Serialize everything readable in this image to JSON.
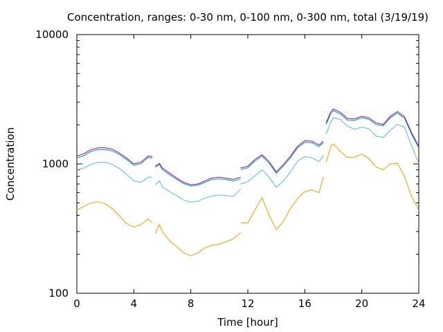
{
  "chart_data": {
    "type": "line",
    "title": "Concentration, ranges: 0-30 nm, 0-100 nm, 0-300 nm, total (3/19/19)",
    "xlabel": "Time [hour]",
    "ylabel": "Concentration",
    "xlim": [
      0,
      24
    ],
    "ylim": [
      100,
      10000
    ],
    "yscale": "log",
    "x_ticks": [
      0,
      4,
      8,
      12,
      16,
      20,
      24
    ],
    "x_tick_labels": [
      "0",
      "4",
      "8",
      "12",
      "16",
      "20",
      "24"
    ],
    "y_ticks": [
      100,
      1000,
      10000
    ],
    "y_tick_labels": [
      "100",
      "1000",
      "10000"
    ],
    "grid": false,
    "legend": "none",
    "series": [
      {
        "key": "total",
        "color": "#9400d3",
        "segments": [
          {
            "x": [
              0,
              0.5,
              1,
              1.5,
              2,
              2.5,
              3,
              3.5,
              4,
              4.5,
              5,
              5.3
            ],
            "y": [
              1150,
              1200,
              1290,
              1330,
              1330,
              1300,
              1210,
              1110,
              1000,
              1030,
              1150,
              1140
            ]
          },
          {
            "x": [
              5.5,
              5.8,
              6,
              6.5,
              7,
              7.5,
              8,
              8.5,
              9,
              9.5,
              10,
              10.5,
              11,
              11.5
            ],
            "y": [
              960,
              1010,
              930,
              850,
              780,
              720,
              690,
              700,
              740,
              780,
              790,
              775,
              760,
              790
            ]
          },
          {
            "x": [
              11.5,
              12,
              12.5,
              13,
              13.5,
              14,
              14.5,
              15,
              15.5,
              16,
              16.5,
              17,
              17.3
            ],
            "y": [
              930,
              960,
              1080,
              1180,
              1040,
              870,
              990,
              1150,
              1370,
              1510,
              1500,
              1400,
              1500
            ]
          },
          {
            "x": [
              17.5,
              17.8,
              18,
              18.5,
              19,
              19.5,
              20,
              20.5,
              21,
              21.5,
              22,
              22.5,
              23,
              23.5,
              24
            ],
            "y": [
              2080,
              2500,
              2660,
              2500,
              2240,
              2230,
              2340,
              2270,
              2080,
              2020,
              2330,
              2540,
              2320,
              1740,
              1370
            ]
          }
        ]
      },
      {
        "key": "0-300 nm",
        "color": "#009e73",
        "segments": [
          {
            "x": [
              0,
              0.5,
              1,
              1.5,
              2,
              2.5,
              3,
              3.5,
              4,
              4.5,
              5,
              5.3
            ],
            "y": [
              1110,
              1160,
              1250,
              1290,
              1290,
              1260,
              1180,
              1080,
              975,
              1005,
              1120,
              1115
            ]
          },
          {
            "x": [
              5.5,
              5.8,
              6,
              6.5,
              7,
              7.5,
              8,
              8.5,
              9,
              9.5,
              10,
              10.5,
              11,
              11.5
            ],
            "y": [
              940,
              990,
              905,
              825,
              760,
              705,
              675,
              685,
              720,
              760,
              765,
              755,
              740,
              765
            ]
          },
          {
            "x": [
              11.5,
              12,
              12.5,
              13,
              13.5,
              14,
              14.5,
              15,
              15.5,
              16,
              16.5,
              17,
              17.3
            ],
            "y": [
              905,
              935,
              1050,
              1150,
              1010,
              845,
              965,
              1120,
              1330,
              1470,
              1460,
              1360,
              1460
            ]
          },
          {
            "x": [
              17.5,
              17.8,
              18,
              18.5,
              19,
              19.5,
              20,
              20.5,
              21,
              21.5,
              22,
              22.5,
              23,
              23.5,
              24
            ],
            "y": [
              2020,
              2420,
              2580,
              2430,
              2180,
              2170,
              2280,
              2210,
              2020,
              1970,
              2270,
              2470,
              2260,
              1690,
              1330
            ]
          }
        ]
      },
      {
        "key": "0-100 nm",
        "color": "#56b4e9",
        "segments": [
          {
            "x": [
              0,
              0.5,
              1,
              1.5,
              2,
              2.5,
              3,
              3.5,
              4,
              4.5,
              5,
              5.3
            ],
            "y": [
              900,
              930,
              990,
              1030,
              1030,
              990,
              920,
              830,
              740,
              720,
              790,
              790
            ]
          },
          {
            "x": [
              5.5,
              5.8,
              6,
              6.5,
              7,
              7.5,
              8,
              8.5,
              9,
              9.5,
              10,
              10.5,
              11,
              11.5
            ],
            "y": [
              690,
              740,
              665,
              610,
              570,
              525,
              505,
              515,
              545,
              565,
              575,
              570,
              560,
              640
            ]
          },
          {
            "x": [
              11.5,
              12,
              12.5,
              13,
              13.5,
              14,
              14.5,
              15,
              15.5,
              16,
              16.5,
              17,
              17.3
            ],
            "y": [
              700,
              730,
              810,
              900,
              790,
              660,
              740,
              870,
              1050,
              1140,
              1120,
              1040,
              1160
            ]
          },
          {
            "x": [
              17.5,
              17.8,
              18,
              18.5,
              19,
              19.5,
              20,
              20.5,
              21,
              21.5,
              22,
              22.5,
              23,
              23.5,
              24
            ],
            "y": [
              1700,
              2080,
              2280,
              2200,
              1950,
              1850,
              1930,
              1870,
              1640,
              1600,
              1820,
              2020,
              1920,
              1380,
              1010
            ]
          }
        ]
      },
      {
        "key": "0-30 nm",
        "color": "#e69f00",
        "segments": [
          {
            "x": [
              0,
              0.5,
              1,
              1.5,
              2,
              2.5,
              3,
              3.5,
              4,
              4.5,
              5,
              5.3
            ],
            "y": [
              440,
              470,
              500,
              510,
              490,
              450,
              395,
              345,
              325,
              340,
              375,
              350
            ]
          },
          {
            "x": [
              5.5,
              5.8,
              6,
              6.5,
              7,
              7.5,
              8,
              8.5,
              9,
              9.5,
              10,
              10.5,
              11,
              11.5
            ],
            "y": [
              290,
              340,
              300,
              255,
              230,
              205,
              195,
              205,
              225,
              235,
              240,
              250,
              265,
              295
            ]
          },
          {
            "x": [
              11.5,
              12,
              12.5,
              13,
              13.5,
              14,
              14.5,
              15,
              15.5,
              16,
              16.5,
              17,
              17.3
            ],
            "y": [
              350,
              350,
              440,
              550,
              400,
              310,
              360,
              455,
              540,
              610,
              630,
              600,
              790
            ]
          },
          {
            "x": [
              17.5,
              17.8,
              18,
              18.5,
              19,
              19.5,
              20,
              20.5,
              21,
              21.5,
              22,
              22.5,
              23,
              23.5,
              24
            ],
            "y": [
              1030,
              1350,
              1430,
              1250,
              1120,
              1130,
              1190,
              1100,
              950,
              900,
              1000,
              1010,
              800,
              560,
              440
            ]
          }
        ]
      }
    ]
  }
}
